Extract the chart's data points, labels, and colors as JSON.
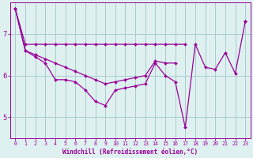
{
  "xlabel": "Windchill (Refroidissement éolien,°C)",
  "x": [
    0,
    1,
    2,
    3,
    4,
    5,
    6,
    7,
    8,
    9,
    10,
    11,
    12,
    13,
    14,
    15,
    16,
    17,
    18,
    19,
    20,
    21,
    22,
    23
  ],
  "main_line": [
    7.6,
    6.6,
    6.45,
    6.3,
    5.9,
    5.9,
    5.85,
    5.65,
    5.38,
    5.28,
    5.65,
    5.7,
    5.75,
    5.8,
    6.3,
    6.0,
    5.85,
    4.75,
    6.75,
    6.2,
    6.15,
    6.55,
    6.05,
    7.3
  ],
  "upper_line": [
    7.6,
    6.75,
    6.75,
    6.75,
    6.75,
    6.75,
    6.75,
    6.75,
    6.75,
    6.75,
    6.75,
    6.75,
    6.75,
    6.75,
    6.75,
    6.75,
    6.75,
    6.75,
    null,
    null,
    null,
    null,
    null,
    7.3
  ],
  "mid_line": [
    7.6,
    6.6,
    6.5,
    6.4,
    6.3,
    6.2,
    6.1,
    6.0,
    5.9,
    5.8,
    5.85,
    5.9,
    5.95,
    6.0,
    6.35,
    6.3,
    6.3,
    null,
    null,
    null,
    null,
    null,
    null,
    7.3
  ],
  "color": "#990099",
  "bg_color": "#dff0f0",
  "grid_color": "#aacccc",
  "ylim": [
    4.5,
    7.75
  ],
  "yticks": [
    5,
    6,
    7
  ],
  "xlim": [
    -0.5,
    23.5
  ]
}
